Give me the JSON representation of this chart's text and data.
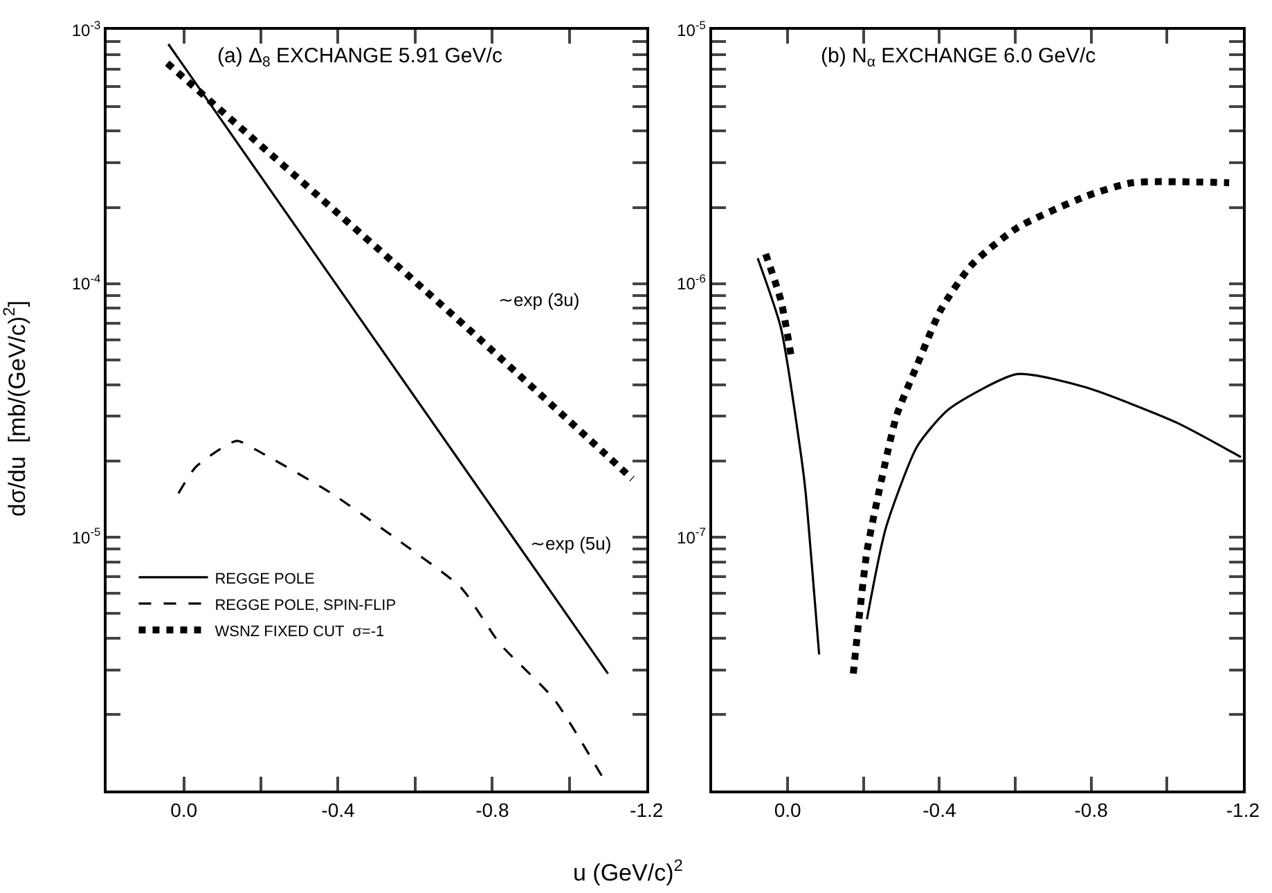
{
  "chart_data": [
    {
      "type": "line",
      "title": "(a) Δ$_{8}$ EXCHANGE 5.91 GeV/c",
      "xlabel": "u (GeV/c)$^{2}$",
      "ylabel": "dσ/du  [mb/(GeV/c)$^{2}$]",
      "log": "y",
      "legend": "bottom left",
      "xlim": [
        0.2,
        -1.2
      ],
      "xticks": [
        {
          "value": 0.0,
          "label": "0.0"
        },
        {
          "value": -0.2,
          "label": null
        },
        {
          "value": -0.4,
          "label": "-0.4"
        },
        {
          "value": -0.6,
          "label": null
        },
        {
          "value": -0.8,
          "label": "-0.8"
        },
        {
          "value": -1.0,
          "label": null
        },
        {
          "value": -1.2,
          "label": "-1.2"
        }
      ],
      "ylim": [
        1e-06,
        0.001
      ],
      "yticks": [
        {
          "value": 1e-06,
          "label": null
        },
        {
          "value": 2e-06,
          "label": null
        },
        {
          "value": 3e-06,
          "label": null
        },
        {
          "value": 4e-06,
          "label": null
        },
        {
          "value": 5e-06,
          "label": null
        },
        {
          "value": 6e-06,
          "label": null
        },
        {
          "value": 7e-06,
          "label": null
        },
        {
          "value": 8e-06,
          "label": null
        },
        {
          "value": 9e-06,
          "label": null
        },
        {
          "value": 1e-05,
          "label": "10$^{-5}$"
        },
        {
          "value": 2e-05,
          "label": null
        },
        {
          "value": 3e-05,
          "label": null
        },
        {
          "value": 4e-05,
          "label": null
        },
        {
          "value": 5e-05,
          "label": null
        },
        {
          "value": 6e-05,
          "label": null
        },
        {
          "value": 7e-05,
          "label": null
        },
        {
          "value": 8e-05,
          "label": null
        },
        {
          "value": 9e-05,
          "label": null
        },
        {
          "value": 0.0001,
          "label": "10$^{-4}$"
        },
        {
          "value": 0.0002,
          "label": null
        },
        {
          "value": 0.0003,
          "label": null
        },
        {
          "value": 0.0004,
          "label": null
        },
        {
          "value": 0.0005,
          "label": null
        },
        {
          "value": 0.0006,
          "label": null
        },
        {
          "value": 0.0007,
          "label": null
        },
        {
          "value": 0.0008,
          "label": null
        },
        {
          "value": 0.0009,
          "label": null
        },
        {
          "value": 0.001,
          "label": "10$^{-3}$"
        }
      ],
      "series": [
        {
          "name": "REGGE POLE",
          "color": "#000000",
          "line_style": "solid",
          "x": [
            0.04,
            -1.1
          ],
          "values": [
            0.00088,
            2.9e-06
          ]
        },
        {
          "name": "REGGE POLE, SPIN-FLIP",
          "color": "#000000",
          "line_style": "dashed",
          "x": [
            0.014,
            -0.032,
            -0.137,
            -0.19,
            -0.38,
            -0.57,
            -0.72,
            -0.82,
            -0.96,
            -1.1
          ],
          "values": [
            1.49e-05,
            1.9e-05,
            2.4e-05,
            2.2e-05,
            1.5e-05,
            9.4e-06,
            6.3e-06,
            3.8e-06,
            2.3e-06,
            1.04e-06
          ]
        },
        {
          "name": "WSNZ FIXED CUT  σ=-1",
          "color": "#000000",
          "line_style": "dotted",
          "x": [
            0.043,
            -0.73,
            -1.163
          ],
          "values": [
            0.00074,
            6.8e-05,
            1.7e-05
          ]
        }
      ],
      "annotations": [
        "∼exp (3u)",
        "∼exp (5u)"
      ]
    },
    {
      "type": "line",
      "title": "(b) N$_{α}$ EXCHANGE 6.0 GeV/c",
      "log": "y",
      "xlim": [
        0.2,
        -1.2
      ],
      "xticks": [
        {
          "value": 0.0,
          "label": "0.0"
        },
        {
          "value": -0.2,
          "label": null
        },
        {
          "value": -0.4,
          "label": "-0.4"
        },
        {
          "value": -0.6,
          "label": null
        },
        {
          "value": -0.8,
          "label": "-0.8"
        },
        {
          "value": -1.0,
          "label": null
        },
        {
          "value": -1.2,
          "label": "-1.2"
        }
      ],
      "ylim": [
        1e-08,
        1e-05
      ],
      "yticks": [
        {
          "value": 1e-08,
          "label": null
        },
        {
          "value": 2e-08,
          "label": null
        },
        {
          "value": 3e-08,
          "label": null
        },
        {
          "value": 4e-08,
          "label": null
        },
        {
          "value": 5e-08,
          "label": null
        },
        {
          "value": 6e-08,
          "label": null
        },
        {
          "value": 7e-08,
          "label": null
        },
        {
          "value": 8e-08,
          "label": null
        },
        {
          "value": 9e-08,
          "label": null
        },
        {
          "value": 1e-07,
          "label": "10$^{-7}$"
        },
        {
          "value": 2e-07,
          "label": null
        },
        {
          "value": 3e-07,
          "label": null
        },
        {
          "value": 4e-07,
          "label": null
        },
        {
          "value": 5e-07,
          "label": null
        },
        {
          "value": 6e-07,
          "label": null
        },
        {
          "value": 7e-07,
          "label": null
        },
        {
          "value": 8e-07,
          "label": null
        },
        {
          "value": 9e-07,
          "label": null
        },
        {
          "value": 1e-06,
          "label": "10$^{-6}$"
        },
        {
          "value": 2e-06,
          "label": null
        },
        {
          "value": 3e-06,
          "label": null
        },
        {
          "value": 4e-06,
          "label": null
        },
        {
          "value": 5e-06,
          "label": null
        },
        {
          "value": 6e-06,
          "label": null
        },
        {
          "value": 7e-06,
          "label": null
        },
        {
          "value": 8e-06,
          "label": null
        },
        {
          "value": 9e-06,
          "label": null
        },
        {
          "value": 1e-05,
          "label": "10$^{-5}$"
        }
      ],
      "series": [
        {
          "color": "#000000",
          "line_style": "solid",
          "x": [
            0.079,
            0.018,
            -0.036,
            -0.047,
            -0.083
          ],
          "values": [
            1.26e-06,
            6.7e-07,
            2.07e-07,
            1.52e-07,
            3.45e-08
          ]
        },
        {
          "color": "#000000",
          "line_style": "dotted",
          "x": [
            0.058,
            0.018,
            -0.011
          ],
          "values": [
            1.31e-06,
            8.6e-07,
            5e-07
          ]
        },
        {
          "color": "#000000",
          "line_style": "dotted",
          "x": [
            -0.173,
            -0.187,
            -0.209,
            -0.241,
            -0.263,
            -0.288,
            -0.342,
            -0.404,
            -0.486,
            -0.605,
            -0.786,
            -0.908,
            -1.164
          ],
          "values": [
            2.9e-08,
            4.6e-08,
            8.8e-08,
            1.52e-07,
            2.15e-07,
            3.05e-07,
            4.8e-07,
            7.9e-07,
            1.19e-06,
            1.66e-06,
            2.21e-06,
            2.5e-06,
            2.5e-06
          ]
        },
        {
          "color": "#000000",
          "line_style": "solid",
          "x": [
            -0.209,
            -0.259,
            -0.342,
            -0.425,
            -0.605,
            -0.786,
            -1.026,
            -1.195
          ],
          "values": [
            4.75e-08,
            1.09e-07,
            2.29e-07,
            3.2e-07,
            4.4e-07,
            3.9e-07,
            2.83e-07,
            2.07e-07
          ]
        }
      ]
    }
  ]
}
